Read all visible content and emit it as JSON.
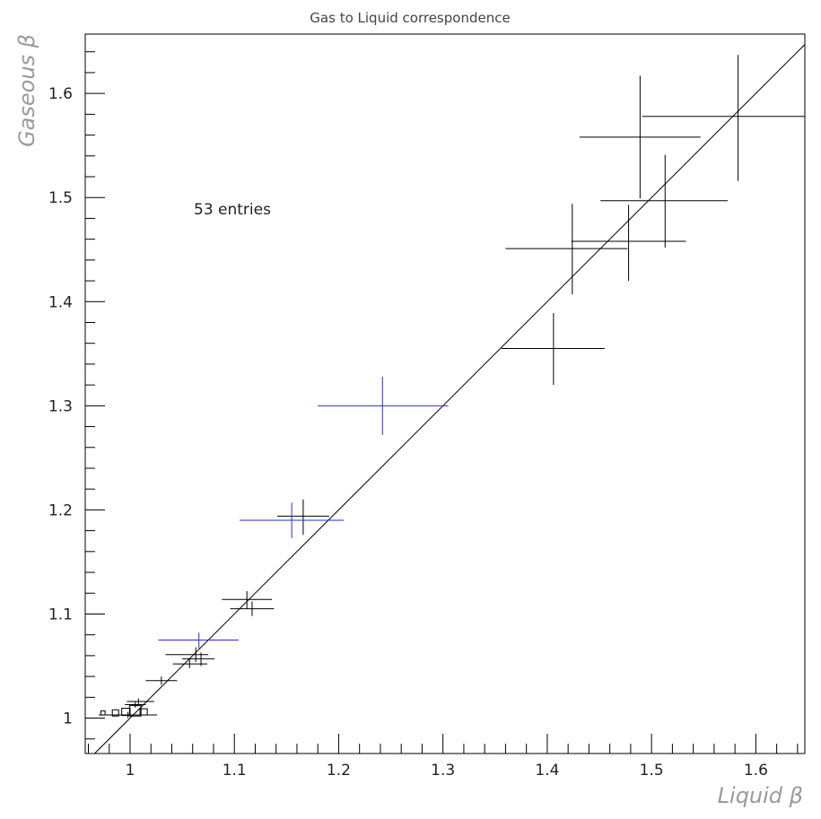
{
  "chart_data": {
    "type": "scatter",
    "title": "Gas to Liquid correspondence",
    "xlabel": "Liquid β",
    "ylabel": "Gaseous β",
    "annotation": "53 entries",
    "xlim": [
      0.957,
      1.647
    ],
    "ylim": [
      0.966,
      1.657
    ],
    "x_ticks": [
      1,
      1.1,
      1.2,
      1.3,
      1.4,
      1.5,
      1.6
    ],
    "x_tick_labels": [
      "1",
      "1.1",
      "1.2",
      "1.3",
      "1.4",
      "1.5",
      "1.6"
    ],
    "y_ticks": [
      1,
      1.1,
      1.2,
      1.3,
      1.4,
      1.5,
      1.6
    ],
    "y_tick_labels": [
      "1",
      "1.1",
      "1.2",
      "1.3",
      "1.4",
      "1.5",
      "1.6"
    ],
    "grid": false,
    "diagonal": true,
    "colors": {
      "black": "#000000",
      "blue": "#2b2bd6",
      "axis_label": "#9a9a9a"
    },
    "series": [
      {
        "marker": "cross",
        "color": "#000000",
        "points": [
          {
            "x": 1.583,
            "y": 1.578,
            "x_lo": 1.491,
            "x_hi": 1.658,
            "y_lo": 1.516,
            "y_hi": 1.637
          },
          {
            "x": 1.489,
            "y": 1.558,
            "x_lo": 1.431,
            "x_hi": 1.547,
            "y_lo": 1.499,
            "y_hi": 1.617
          },
          {
            "x": 1.513,
            "y": 1.497,
            "x_lo": 1.451,
            "x_hi": 1.573,
            "y_lo": 1.452,
            "y_hi": 1.541
          },
          {
            "x": 1.478,
            "y": 1.458,
            "x_lo": 1.423,
            "x_hi": 1.533,
            "y_lo": 1.42,
            "y_hi": 1.493
          },
          {
            "x": 1.424,
            "y": 1.451,
            "x_lo": 1.36,
            "x_hi": 1.477,
            "y_lo": 1.407,
            "y_hi": 1.494
          },
          {
            "x": 1.406,
            "y": 1.355,
            "x_lo": 1.356,
            "x_hi": 1.455,
            "y_lo": 1.32,
            "y_hi": 1.389
          },
          {
            "x": 1.166,
            "y": 1.194,
            "x_lo": 1.141,
            "x_hi": 1.191,
            "y_lo": 1.176,
            "y_hi": 1.21
          },
          {
            "x": 1.112,
            "y": 1.114,
            "x_lo": 1.088,
            "x_hi": 1.136,
            "y_lo": 1.105,
            "y_hi": 1.122
          },
          {
            "x": 1.117,
            "y": 1.105,
            "x_lo": 1.096,
            "x_hi": 1.138,
            "y_lo": 1.098,
            "y_hi": 1.112
          },
          {
            "x": 1.063,
            "y": 1.061,
            "x_lo": 1.034,
            "x_hi": 1.075,
            "y_lo": 1.054,
            "y_hi": 1.068
          },
          {
            "x": 1.068,
            "y": 1.057,
            "x_lo": 1.05,
            "x_hi": 1.081,
            "y_lo": 1.05,
            "y_hi": 1.063
          },
          {
            "x": 1.057,
            "y": 1.052,
            "x_lo": 1.041,
            "x_hi": 1.074,
            "y_lo": 1.048,
            "y_hi": 1.057
          },
          {
            "x": 1.03,
            "y": 1.036,
            "x_lo": 1.015,
            "x_hi": 1.045,
            "y_lo": 1.032,
            "y_hi": 1.04
          },
          {
            "x": 1.008,
            "y": 1.016,
            "x_lo": 0.997,
            "x_hi": 1.023,
            "y_lo": 1.012,
            "y_hi": 1.019
          },
          {
            "x": 1.005,
            "y": 1.013,
            "x_lo": 0.995,
            "x_hi": 1.015,
            "y_lo": 1.01,
            "y_hi": 1.016
          },
          {
            "x": 0.998,
            "y": 1.003,
            "x_lo": 0.97,
            "x_hi": 1.026,
            "y_lo": 1.0,
            "y_hi": 1.006
          }
        ]
      },
      {
        "marker": "cross",
        "color": "#2b2bd6",
        "points": [
          {
            "x": 1.242,
            "y": 1.3,
            "x_lo": 1.18,
            "x_hi": 1.305,
            "y_lo": 1.272,
            "y_hi": 1.328
          },
          {
            "x": 1.155,
            "y": 1.19,
            "x_lo": 1.105,
            "x_hi": 1.205,
            "y_lo": 1.173,
            "y_hi": 1.207
          },
          {
            "x": 1.066,
            "y": 1.075,
            "x_lo": 1.027,
            "x_hi": 1.104,
            "y_lo": 1.067,
            "y_hi": 1.082
          }
        ]
      },
      {
        "marker": "box",
        "color": "#000000",
        "points": [
          {
            "x": 0.974,
            "y": 1.005,
            "w": 0.004,
            "h": 0.004
          },
          {
            "x": 0.986,
            "y": 1.005,
            "w": 0.006,
            "h": 0.006
          },
          {
            "x": 0.996,
            "y": 1.006,
            "w": 0.008,
            "h": 0.007
          },
          {
            "x": 1.005,
            "y": 1.007,
            "w": 0.011,
            "h": 0.01
          },
          {
            "x": 1.013,
            "y": 1.006,
            "w": 0.007,
            "h": 0.006
          }
        ]
      }
    ]
  }
}
